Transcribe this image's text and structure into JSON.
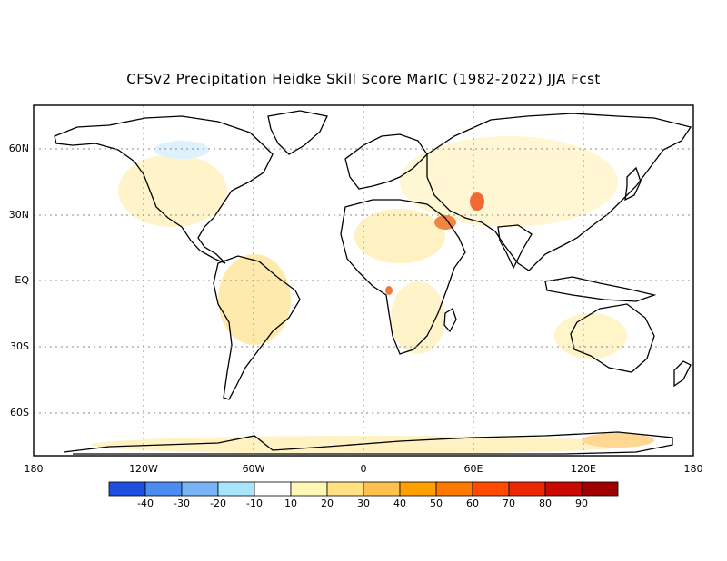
{
  "title": "CFSv2 Precipitation Heidke Skill Score MarIC (1982-2022) JJA Fcst",
  "lat_labels": [
    "60N",
    "30N",
    "EQ",
    "30S",
    "60S"
  ],
  "lon_labels": [
    "180",
    "120W",
    "60W",
    "0",
    "60E",
    "120E",
    "180"
  ],
  "colorbar": {
    "colors": [
      "#1f4fe0",
      "#4b8cf0",
      "#78b4f5",
      "#a8e4fa",
      "#ffffff",
      "#fff8b4",
      "#ffe082",
      "#ffc050",
      "#ffa000",
      "#ff7800",
      "#ff4a00",
      "#ec2800",
      "#c80a00",
      "#a00000"
    ],
    "labels": [
      "-40",
      "-30",
      "-20",
      "-10",
      "10",
      "20",
      "30",
      "40",
      "50",
      "60",
      "70",
      "80",
      "90"
    ]
  }
}
